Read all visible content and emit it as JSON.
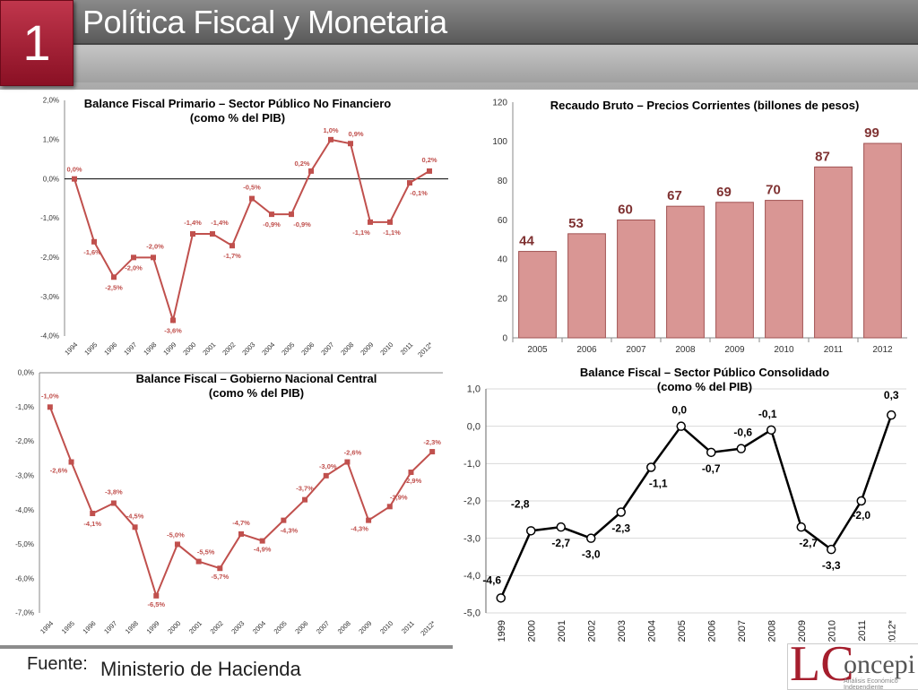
{
  "header": {
    "number": "1",
    "title": "Política Fiscal y Monetaria"
  },
  "footer": {
    "label": "Fuente:",
    "value": "Ministerio de Hacienda"
  },
  "logo": {
    "mark": "LC",
    "text": "oncepi",
    "subtext": "Análisis Económico Independiente"
  },
  "colors": {
    "accent": "#a51e2d",
    "line_red": "#c0504d",
    "bar_fill": "#d99694",
    "bar_stroke": "#a05252",
    "line_black": "#000000"
  },
  "chart_data": [
    {
      "id": "c1",
      "type": "line",
      "title_lines": [
        "Balance Fiscal Primario – Sector Público No Financiero",
        "(como % del PIB)"
      ],
      "categories": [
        "1994",
        "1995",
        "1996",
        "1997",
        "1998",
        "1999",
        "2000",
        "2001",
        "2002",
        "2003",
        "2004",
        "2005",
        "2006",
        "2007",
        "2008",
        "2009",
        "2010",
        "2011",
        "2012*"
      ],
      "values": [
        0.0,
        -1.6,
        -2.5,
        -2.0,
        -2.0,
        -3.6,
        -1.4,
        -1.4,
        -1.7,
        -0.5,
        -0.9,
        -0.9,
        0.2,
        1.0,
        0.9,
        -1.1,
        -1.1,
        -0.1,
        0.2
      ],
      "labels": [
        "0,0%",
        "-1,6%",
        "-2,5%",
        "-2,0%",
        "-2,0%",
        "-3,6%",
        "-1,4%",
        "-1,4%",
        "-1,7%",
        "-0,5%",
        "-0,9%",
        "-0,9%",
        "0,2%",
        "1,0%",
        "0,9%",
        "-1,1%",
        "-1,1%",
        "-0,1%",
        "0,2%"
      ],
      "ylim": [
        -4.0,
        2.0
      ],
      "yticks": [
        2.0,
        1.0,
        0.0,
        -1.0,
        -2.0,
        -3.0,
        -4.0
      ],
      "ytick_labels": [
        "2,0%",
        "1,0%",
        "0,0%",
        "-1,0%",
        "-2,0%",
        "-3,0%",
        "-4,0%"
      ],
      "zero_line": true
    },
    {
      "id": "c2",
      "type": "bar",
      "title_lines": [
        "Recaudo Bruto – Precios Corrientes (billones de pesos)"
      ],
      "categories": [
        "2005",
        "2006",
        "2007",
        "2008",
        "2009",
        "2010",
        "2011",
        "2012"
      ],
      "values": [
        44,
        53,
        60,
        67,
        69,
        70,
        87,
        99
      ],
      "labels": [
        "44",
        "53",
        "60",
        "67",
        "69",
        "70",
        "87",
        "99"
      ],
      "ylim": [
        0,
        120
      ],
      "yticks": [
        0,
        20,
        40,
        60,
        80,
        100,
        120
      ],
      "ytick_labels": [
        "0",
        "20",
        "40",
        "60",
        "80",
        "100",
        "120"
      ]
    },
    {
      "id": "c3",
      "type": "line",
      "title_lines": [
        "Balance Fiscal – Gobierno Nacional Central",
        "(como % del PIB)"
      ],
      "categories": [
        "1994",
        "1995",
        "1996",
        "1997",
        "1998",
        "1999",
        "2000",
        "2001",
        "2002",
        "2003",
        "2004",
        "2005",
        "2006",
        "2007",
        "2008",
        "2009",
        "2010",
        "2011",
        "2012*"
      ],
      "values": [
        -1.0,
        -2.6,
        -4.1,
        -3.8,
        -4.5,
        -6.5,
        -5.0,
        -5.5,
        -5.7,
        -4.7,
        -4.9,
        -4.3,
        -3.7,
        -3.0,
        -2.6,
        -4.3,
        -3.9,
        -2.9,
        -2.3
      ],
      "labels": [
        "-1,0%",
        "-2,6%",
        "-4,1%",
        "-3,8%",
        "-4,5%",
        "-6,5%",
        "-5,0%",
        "-5,5%",
        "-5,7%",
        "-4,7%",
        "-4,9%",
        "-4,3%",
        "-3,7%",
        "-3,0%",
        "-2,6%",
        "-4,3%",
        "-3,9%",
        "-2,9%",
        "-2,3%"
      ],
      "ylim": [
        -7.0,
        0.0
      ],
      "yticks": [
        0,
        -1,
        -2,
        -3,
        -4,
        -5,
        -6,
        -7
      ],
      "ytick_labels": [
        "0,0%",
        "-1,0%",
        "-2,0%",
        "-3,0%",
        "-4,0%",
        "-5,0%",
        "-6,0%",
        "-7,0%"
      ]
    },
    {
      "id": "c4",
      "type": "line",
      "title_lines": [
        "Balance Fiscal – Sector Público Consolidado",
        "(como % del PIB)"
      ],
      "categories": [
        "1999",
        "2000",
        "2001",
        "2002",
        "2003",
        "2004",
        "2005",
        "2006",
        "2007",
        "2008",
        "2009",
        "2010",
        "2011",
        "2012*"
      ],
      "values": [
        -4.6,
        -2.8,
        -2.7,
        -3.0,
        -2.3,
        -1.1,
        0.0,
        -0.7,
        -0.6,
        -0.1,
        -2.7,
        -3.3,
        -2.0,
        0.3
      ],
      "labels": [
        "-4,6",
        "-2,8",
        "-2,7",
        "-3,0",
        "-2,3",
        "-1,1",
        "0,0",
        "-0,7",
        "-0,6",
        "-0,1",
        "-2,7",
        "-3,3",
        "-2,0",
        "0,3"
      ],
      "ylim": [
        -5.0,
        1.0
      ],
      "yticks": [
        1,
        0,
        -1,
        -2,
        -3,
        -4,
        -5
      ],
      "ytick_labels": [
        "1,0",
        "0,0",
        "-1,0",
        "-2,0",
        "-3,0",
        "-4,0",
        "-5,0"
      ]
    }
  ]
}
